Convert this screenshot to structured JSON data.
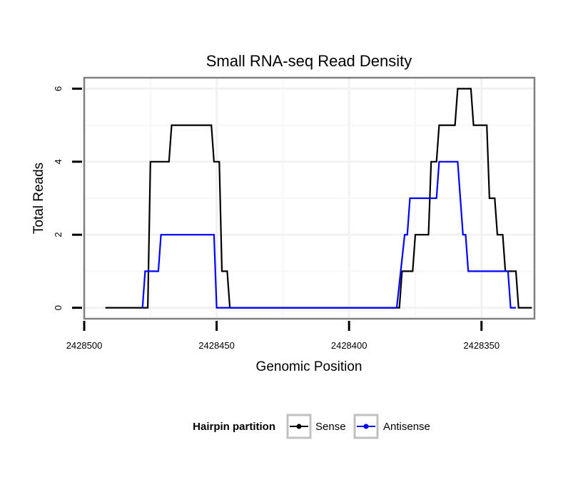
{
  "chart_data": {
    "type": "line",
    "line_shape": "step",
    "title": "Small RNA-seq Read Density",
    "xlabel": "Genomic Position",
    "ylabel": "Total Reads",
    "x_reversed": true,
    "xlim": [
      2428500,
      2428330
    ],
    "ylim": [
      -0.3,
      6.3
    ],
    "x_ticks": [
      2428500,
      2428450,
      2428400,
      2428350
    ],
    "x_tick_labels": [
      "2428500",
      "2428450",
      "2428400",
      "2428350"
    ],
    "y_ticks": [
      0,
      2,
      4,
      6
    ],
    "y_tick_labels": [
      "0",
      "2",
      "4",
      "6"
    ],
    "grid": true,
    "legend": {
      "title": "Hairpin partition",
      "position": "bottom"
    },
    "series": [
      {
        "name": "Sense",
        "color": "#000000",
        "points": [
          [
            2428492,
            0
          ],
          [
            2428476,
            0
          ],
          [
            2428475,
            4
          ],
          [
            2428468,
            4
          ],
          [
            2428467,
            5
          ],
          [
            2428460,
            5
          ],
          [
            2428452,
            5
          ],
          [
            2428451,
            4
          ],
          [
            2428449,
            4
          ],
          [
            2428448,
            1
          ],
          [
            2428446,
            1
          ],
          [
            2428445,
            0
          ],
          [
            2428420,
            0
          ],
          [
            2428381,
            0
          ],
          [
            2428380,
            1
          ],
          [
            2428376,
            1
          ],
          [
            2428375,
            2
          ],
          [
            2428370,
            2
          ],
          [
            2428369,
            4
          ],
          [
            2428367,
            4
          ],
          [
            2428366,
            5
          ],
          [
            2428360,
            5
          ],
          [
            2428359,
            6
          ],
          [
            2428354,
            6
          ],
          [
            2428353,
            5
          ],
          [
            2428348,
            5
          ],
          [
            2428347,
            3
          ],
          [
            2428345,
            3
          ],
          [
            2428344,
            2
          ],
          [
            2428342,
            2
          ],
          [
            2428341,
            1
          ],
          [
            2428337,
            1
          ],
          [
            2428336,
            0
          ],
          [
            2428331,
            0
          ]
        ]
      },
      {
        "name": "Antisense",
        "color": "#0000ff",
        "points": [
          [
            2428478,
            0
          ],
          [
            2428477,
            1
          ],
          [
            2428472,
            1
          ],
          [
            2428471,
            2
          ],
          [
            2428461,
            2
          ],
          [
            2428451,
            2
          ],
          [
            2428450,
            0
          ],
          [
            2428420,
            0
          ],
          [
            2428382,
            0
          ],
          [
            2428379,
            2
          ],
          [
            2428378,
            2
          ],
          [
            2428377,
            3
          ],
          [
            2428367,
            3
          ],
          [
            2428366,
            4
          ],
          [
            2428359,
            4
          ],
          [
            2428357,
            2
          ],
          [
            2428356,
            2
          ],
          [
            2428355,
            1
          ],
          [
            2428350,
            1
          ],
          [
            2428340,
            1
          ],
          [
            2428339,
            0
          ],
          [
            2428337,
            0
          ]
        ]
      }
    ]
  }
}
